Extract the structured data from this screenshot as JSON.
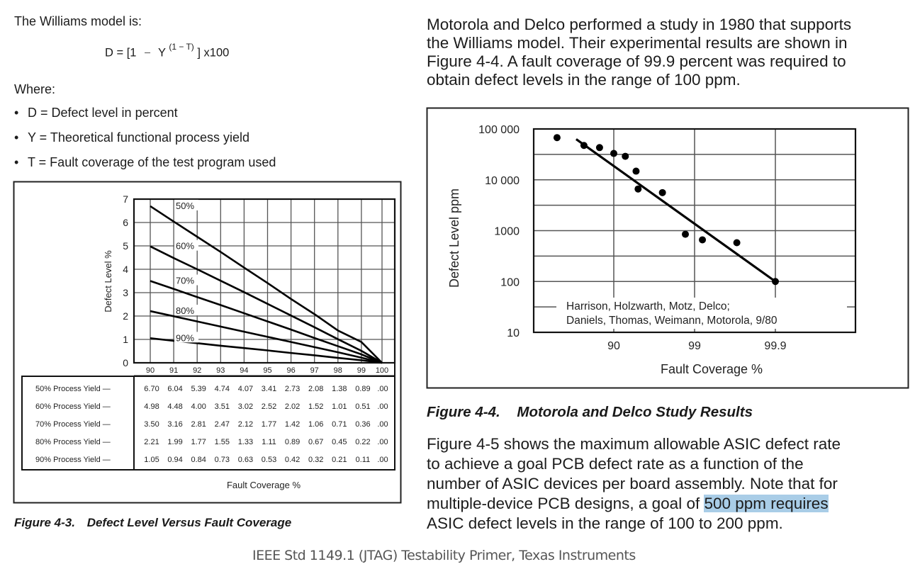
{
  "left_text": {
    "intro": "The Williams model is:",
    "formula": {
      "lhs": "D = [1",
      "minus": "−",
      "y": "Y",
      "exponent": "(1 − T)",
      "rhs": "] x100"
    },
    "where": "Where:",
    "bullets": [
      "D = Defect level in percent",
      "Y = Theoretical functional process yield",
      "T = Fault coverage of the test program used"
    ],
    "caption_num": "Figure 4-3.",
    "caption_title": "Defect Level Versus Fault Coverage"
  },
  "right_text": {
    "para1": [
      "Motorola and Delco performed a study in 1980 that supports",
      "the Williams model. Their experimental results are shown in",
      "Figure 4-4. A fault coverage of 99.9 percent was required to",
      "obtain defect levels in the range of 100 ppm."
    ],
    "caption_num": "Figure 4-4.",
    "caption_title": "Motorola and Delco Study Results",
    "para2": [
      "Figure 4-5 shows the maximum allowable ASIC defect rate",
      "to achieve a goal PCB defect rate as a function of the",
      "number of ASIC devices per board assembly. Note that for"
    ],
    "para2_line4_pre": "multiple-device PCB designs, a goal of ",
    "para2_line4_highlight": "500 ppm requires",
    "para2_line5": "ASIC defect levels in the range of 100 to 200 ppm.",
    "highlight_color": "#a9cde7"
  },
  "footer": "IEEE Std 1149.1 (JTAG) Testability Primer, Texas Instruments",
  "chart_data": [
    {
      "type": "line",
      "title": "Figure 4-3. Defect Level Versus Fault Coverage",
      "xlabel": "Fault Coverage %",
      "ylabel": "Defect Level %",
      "x": [
        90,
        91,
        92,
        93,
        94,
        95,
        96,
        97,
        98,
        99,
        100
      ],
      "xtick_labels": [
        "90",
        "91",
        "92",
        "93",
        "94",
        "95",
        "96",
        "97",
        "98",
        "99",
        "100"
      ],
      "yticks": [
        0,
        1,
        2,
        3,
        4,
        5,
        6,
        7
      ],
      "ylim": [
        0,
        7
      ],
      "xlim": [
        90,
        100
      ],
      "grid": true,
      "series": [
        {
          "name": "50%",
          "table_label": "50% Process Yield —",
          "values": [
            6.7,
            6.04,
            5.39,
            4.74,
            4.07,
            3.41,
            2.73,
            2.08,
            1.38,
            0.89,
            0.0
          ],
          "table_values": [
            "6.70",
            "6.04",
            "5.39",
            "4.74",
            "4.07",
            "3.41",
            "2.73",
            "2.08",
            "1.38",
            "0.89",
            ".00"
          ]
        },
        {
          "name": "60%",
          "table_label": "60% Process Yield —",
          "values": [
            4.98,
            4.48,
            4.0,
            3.51,
            3.02,
            2.52,
            2.02,
            1.52,
            1.01,
            0.51,
            0.0
          ],
          "table_values": [
            "4.98",
            "4.48",
            "4.00",
            "3.51",
            "3.02",
            "2.52",
            "2.02",
            "1.52",
            "1.01",
            "0.51",
            ".00"
          ]
        },
        {
          "name": "70%",
          "table_label": "70% Process Yield —",
          "values": [
            3.5,
            3.16,
            2.81,
            2.47,
            2.12,
            1.77,
            1.42,
            1.06,
            0.71,
            0.36,
            0.0
          ],
          "table_values": [
            "3.50",
            "3.16",
            "2.81",
            "2.47",
            "2.12",
            "1.77",
            "1.42",
            "1.06",
            "0.71",
            "0.36",
            ".00"
          ]
        },
        {
          "name": "80%",
          "table_label": "80% Process Yield —",
          "values": [
            2.21,
            1.99,
            1.77,
            1.55,
            1.33,
            1.11,
            0.89,
            0.67,
            0.45,
            0.22,
            0.0
          ],
          "table_values": [
            "2.21",
            "1.99",
            "1.77",
            "1.55",
            "1.33",
            "1.11",
            "0.89",
            "0.67",
            "0.45",
            "0.22",
            ".00"
          ]
        },
        {
          "name": "90%",
          "table_label": "90% Process Yield —",
          "values": [
            1.05,
            0.94,
            0.84,
            0.73,
            0.63,
            0.53,
            0.42,
            0.32,
            0.21,
            0.11,
            0.0
          ],
          "table_values": [
            "1.05",
            "0.94",
            "0.84",
            "0.73",
            "0.63",
            "0.53",
            "0.42",
            "0.32",
            "0.21",
            "0.11",
            ".00"
          ]
        }
      ]
    },
    {
      "type": "scatter",
      "title": "Figure 4-4. Motorola and Delco Study Results",
      "xlabel": "Fault Coverage %",
      "ylabel": "Defect Level ppm",
      "x_scale": "log(100 - x)",
      "y_scale": "log",
      "ylim": [
        10,
        100000
      ],
      "yticks": [
        10,
        100,
        1000,
        10000,
        100000
      ],
      "ytick_labels": [
        "10",
        "100",
        "1000",
        "10 000",
        "100 000"
      ],
      "xticks": [
        90,
        99,
        99.9
      ],
      "xtick_labels": [
        "90",
        "99",
        "99.9"
      ],
      "grid": true,
      "points": [
        {
          "x": 49.6,
          "y": 67600
        },
        {
          "x": 76.6,
          "y": 47400
        },
        {
          "x": 85.0,
          "y": 43000
        },
        {
          "x": 90.0,
          "y": 33000
        },
        {
          "x": 92.8,
          "y": 29000
        },
        {
          "x": 94.7,
          "y": 14800
        },
        {
          "x": 95.0,
          "y": 6600
        },
        {
          "x": 97.5,
          "y": 5600
        },
        {
          "x": 98.7,
          "y": 850
        },
        {
          "x": 99.2,
          "y": 660
        },
        {
          "x": 99.7,
          "y": 580
        },
        {
          "x": 99.9,
          "y": 100
        }
      ],
      "fit_line": [
        {
          "x": 70.8,
          "y": 63000
        },
        {
          "x": 99.9,
          "y": 100
        }
      ],
      "annotation": [
        "Harrison, Holzwarth, Motz, Delco;",
        "Daniels, Thomas, Weimann, Motorola, 9/80"
      ]
    }
  ]
}
